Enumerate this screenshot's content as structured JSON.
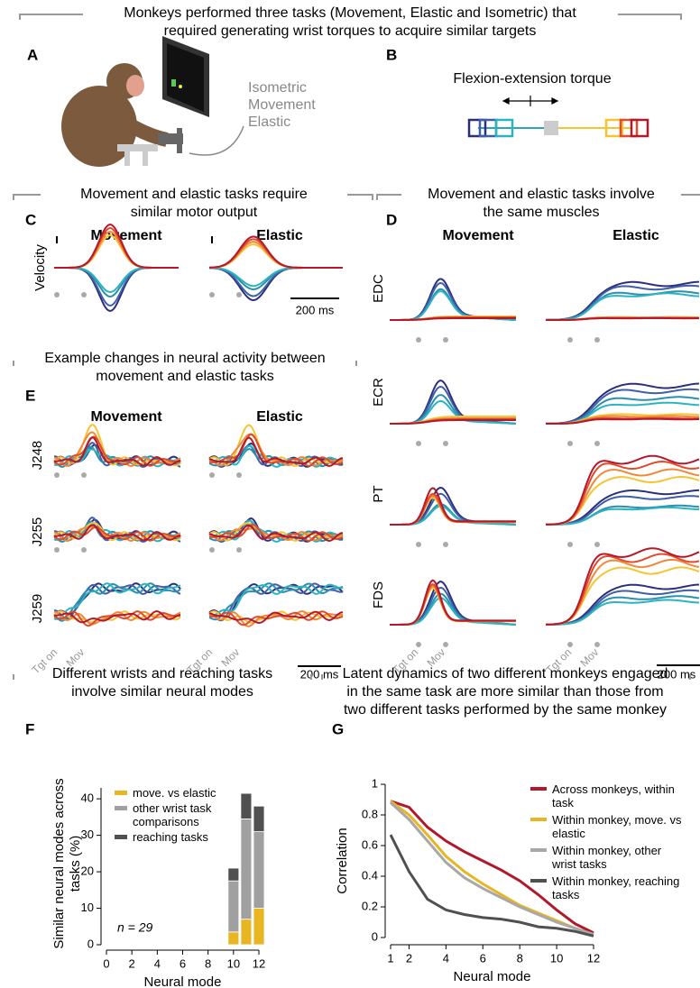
{
  "header": {
    "title": [
      "Monkeys performed three tasks (Movement, Elastic and Isometric) that",
      "required generating wrist torques to acquire similar targets"
    ]
  },
  "panels": {
    "A": {
      "letter": "A",
      "labels": [
        "Isometric",
        "Movement",
        "Elastic"
      ]
    },
    "B": {
      "letter": "B",
      "label": "Flexion-extension torque"
    },
    "C": {
      "letter": "C",
      "title": [
        "Movement and elastic tasks require",
        "similar motor output"
      ],
      "columns": [
        "Movement",
        "Elastic"
      ],
      "ylabel": "Velocity",
      "scale": "200 ms"
    },
    "D": {
      "letter": "D",
      "title": [
        "Movement and elastic tasks involve",
        "the same muscles"
      ],
      "columns": [
        "Movement",
        "Elastic"
      ],
      "muscles": [
        "EDC",
        "ECR",
        "PT",
        "FDS"
      ],
      "scale": "200 ms",
      "events": [
        "Tgt on",
        "Mov"
      ]
    },
    "E": {
      "letter": "E",
      "title": [
        "Example changes in neural activity between",
        "movement and elastic tasks"
      ],
      "columns": [
        "Movement",
        "Elastic"
      ],
      "units": [
        "J248",
        "J255",
        "J259"
      ],
      "scale": "200 ms",
      "events": [
        "Tgt on",
        "Mov"
      ]
    },
    "F": {
      "letter": "F",
      "title": [
        "Different wrists and reaching tasks",
        "involve similar neural modes"
      ]
    },
    "G": {
      "letter": "G",
      "title": [
        "Latent dynamics of two different monkeys engaged",
        "in the same task are more similar than those from",
        "two different tasks performed by the same monkey"
      ]
    }
  },
  "chart_data": [
    {
      "type": "bar",
      "stacked": true,
      "x": [
        10,
        11,
        12
      ],
      "xlim": [
        0,
        12
      ],
      "xticks": [
        0,
        2,
        4,
        6,
        8,
        10,
        12
      ],
      "ylim": [
        0,
        43
      ],
      "yticks": [
        0,
        10,
        20,
        30,
        40
      ],
      "xlabel": "Neural mode",
      "ylabel": "Similar neural modes across tasks (%)",
      "annotation": "n = 29",
      "series": [
        {
          "name": "move. vs elastic",
          "color": "#e8b622",
          "values": [
            3.5,
            7,
            10
          ]
        },
        {
          "name": "other wrist task comparisons",
          "color": "#a0a0a0",
          "values": [
            14,
            27.5,
            21
          ]
        },
        {
          "name": "reaching tasks",
          "color": "#505050",
          "values": [
            3.5,
            7,
            7
          ]
        }
      ]
    },
    {
      "type": "line",
      "x": [
        1,
        2,
        3,
        4,
        5,
        6,
        7,
        8,
        9,
        10,
        11,
        12
      ],
      "xlim": [
        1,
        12
      ],
      "xticks": [
        1,
        2,
        4,
        6,
        8,
        10,
        12
      ],
      "ylim": [
        0,
        1
      ],
      "yticks": [
        0,
        0.2,
        0.4,
        0.6,
        0.8,
        1
      ],
      "xlabel": "Neural mode",
      "ylabel": "Correlation",
      "series": [
        {
          "name": "Across monkeys, within task",
          "color": "#b2182b",
          "values": [
            0.89,
            0.85,
            0.72,
            0.63,
            0.56,
            0.5,
            0.44,
            0.37,
            0.28,
            0.18,
            0.09,
            0.03
          ]
        },
        {
          "name": "Within monkey, move. vs elastic",
          "color": "#e8b622",
          "values": [
            0.89,
            0.8,
            0.67,
            0.53,
            0.43,
            0.35,
            0.28,
            0.21,
            0.16,
            0.11,
            0.06,
            0.02
          ]
        },
        {
          "name": "Within monkey, other wrist tasks",
          "color": "#a8a8a8",
          "values": [
            0.88,
            0.77,
            0.63,
            0.49,
            0.39,
            0.32,
            0.26,
            0.2,
            0.15,
            0.1,
            0.06,
            0.02
          ]
        },
        {
          "name": "Within monkey, reaching tasks",
          "color": "#505050",
          "values": [
            0.67,
            0.43,
            0.25,
            0.18,
            0.15,
            0.13,
            0.12,
            0.1,
            0.07,
            0.06,
            0.04,
            0.01
          ]
        }
      ]
    }
  ]
}
